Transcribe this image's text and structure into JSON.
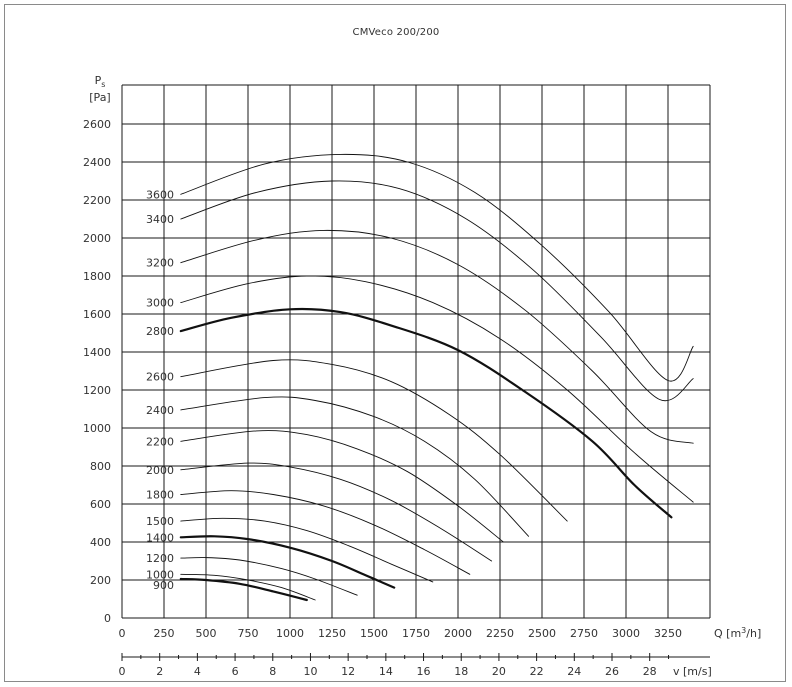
{
  "chart_data": {
    "type": "line",
    "title": "CMVeco 200/200",
    "ylabel": "Ps",
    "yunit": "[Pa]",
    "xlabel": "Q [m³/h]",
    "x2label": "v [m/s]",
    "xlim": [
      0,
      3500
    ],
    "ylim": [
      0,
      2600
    ],
    "xticks": [
      0,
      250,
      500,
      750,
      1000,
      1250,
      1500,
      1750,
      2000,
      2250,
      2500,
      2750,
      3000,
      3250
    ],
    "yticks": [
      0,
      200,
      400,
      600,
      800,
      1000,
      1200,
      1400,
      1600,
      1800,
      2000,
      2200,
      2400,
      2600
    ],
    "x2ticks": [
      0,
      2,
      4,
      6,
      8,
      10,
      12,
      14,
      16,
      18,
      20,
      22,
      24,
      26,
      28
    ],
    "x2lim": [
      0,
      31.2
    ],
    "grid": true,
    "series": [
      {
        "name": "900",
        "bold": true,
        "label_y": 175,
        "x": [
          350,
          500,
          700,
          900,
          1100
        ],
        "y": [
          205,
          200,
          180,
          140,
          95
        ]
      },
      {
        "name": "1000",
        "bold": false,
        "label_y": 230,
        "x": [
          350,
          550,
          750,
          950,
          1150
        ],
        "y": [
          230,
          225,
          200,
          160,
          95
        ]
      },
      {
        "name": "1200",
        "bold": false,
        "label_y": 315,
        "x": [
          350,
          500,
          700,
          950,
          1150,
          1400
        ],
        "y": [
          315,
          318,
          305,
          260,
          205,
          120
        ]
      },
      {
        "name": "1400",
        "bold": true,
        "label_y": 425,
        "x": [
          350,
          550,
          750,
          1000,
          1250,
          1450,
          1620
        ],
        "y": [
          425,
          430,
          415,
          370,
          300,
          225,
          160
        ]
      },
      {
        "name": "1500",
        "bold": false,
        "label_y": 510,
        "x": [
          350,
          600,
          850,
          1100,
          1350,
          1600,
          1850
        ],
        "y": [
          510,
          525,
          510,
          460,
          380,
          285,
          190
        ]
      },
      {
        "name": "1800",
        "bold": false,
        "label_y": 650,
        "x": [
          350,
          650,
          900,
          1200,
          1500,
          1800,
          2070
        ],
        "y": [
          650,
          670,
          650,
          590,
          490,
          360,
          230
        ]
      },
      {
        "name": "2000",
        "bold": false,
        "label_y": 780,
        "x": [
          350,
          750,
          1000,
          1300,
          1600,
          1900,
          2200
        ],
        "y": [
          780,
          815,
          795,
          730,
          620,
          470,
          300
        ]
      },
      {
        "name": "2200",
        "bold": false,
        "label_y": 930,
        "x": [
          350,
          800,
          1100,
          1400,
          1700,
          2000,
          2270
        ],
        "y": [
          930,
          985,
          965,
          890,
          770,
          590,
          400
        ]
      },
      {
        "name": "2400",
        "bold": false,
        "label_y": 1095,
        "x": [
          350,
          850,
          1150,
          1500,
          1800,
          2100,
          2420
        ],
        "y": [
          1095,
          1160,
          1145,
          1060,
          930,
          730,
          430
        ]
      },
      {
        "name": "2600",
        "bold": false,
        "label_y": 1270,
        "x": [
          350,
          900,
          1250,
          1600,
          1950,
          2250,
          2650
        ],
        "y": [
          1270,
          1355,
          1335,
          1245,
          1070,
          860,
          510
        ]
      },
      {
        "name": "2800",
        "bold": true,
        "label_y": 1510,
        "x": [
          350,
          650,
          1000,
          1300,
          1600,
          2000,
          2400,
          2800,
          3050,
          3270
        ],
        "y": [
          1510,
          1580,
          1625,
          1610,
          1540,
          1410,
          1190,
          930,
          700,
          530
        ]
      },
      {
        "name": "3000",
        "bold": false,
        "label_y": 1660,
        "x": [
          350,
          750,
          1100,
          1450,
          1850,
          2250,
          2650,
          3050,
          3400
        ],
        "y": [
          1660,
          1760,
          1800,
          1770,
          1660,
          1470,
          1200,
          870,
          610
        ]
      },
      {
        "name": "3200",
        "bold": false,
        "label_y": 1870,
        "x": [
          350,
          800,
          1200,
          1600,
          2000,
          2400,
          2800,
          3150,
          3400
        ],
        "y": [
          1870,
          1990,
          2040,
          2000,
          1860,
          1620,
          1300,
          980,
          920
        ]
      },
      {
        "name": "3400",
        "bold": false,
        "label_y": 2100,
        "x": [
          350,
          800,
          1250,
          1650,
          2050,
          2450,
          2850,
          3200,
          3400
        ],
        "y": [
          2100,
          2240,
          2300,
          2260,
          2100,
          1830,
          1480,
          1150,
          1260
        ]
      },
      {
        "name": "3600",
        "bold": false,
        "label_y": 2230,
        "x": [
          350,
          850,
          1300,
          1700,
          2100,
          2500,
          2900,
          3250,
          3400
        ],
        "y": [
          2230,
          2390,
          2440,
          2400,
          2240,
          1960,
          1610,
          1250,
          1430
        ]
      }
    ]
  }
}
